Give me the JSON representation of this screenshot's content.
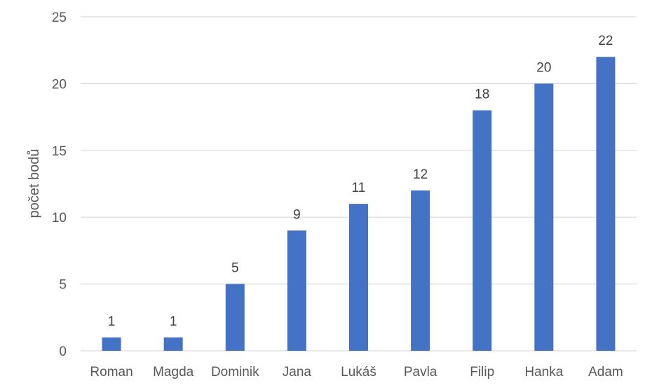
{
  "chart_data": {
    "type": "bar",
    "title": "",
    "xlabel": "",
    "ylabel": "počet bodů",
    "categories": [
      "Roman",
      "Magda",
      "Dominik",
      "Jana",
      "Lukáš",
      "Pavla",
      "Filip",
      "Hanka",
      "Adam"
    ],
    "values": [
      1,
      1,
      5,
      9,
      11,
      12,
      18,
      20,
      22
    ],
    "ylim": [
      0,
      25
    ],
    "yticks": [
      0,
      5,
      10,
      15,
      20,
      25
    ],
    "grid": true,
    "data_labels": true,
    "legend": "none",
    "bar_color": "#4472C4",
    "grid_color": "#D9D9D9"
  }
}
